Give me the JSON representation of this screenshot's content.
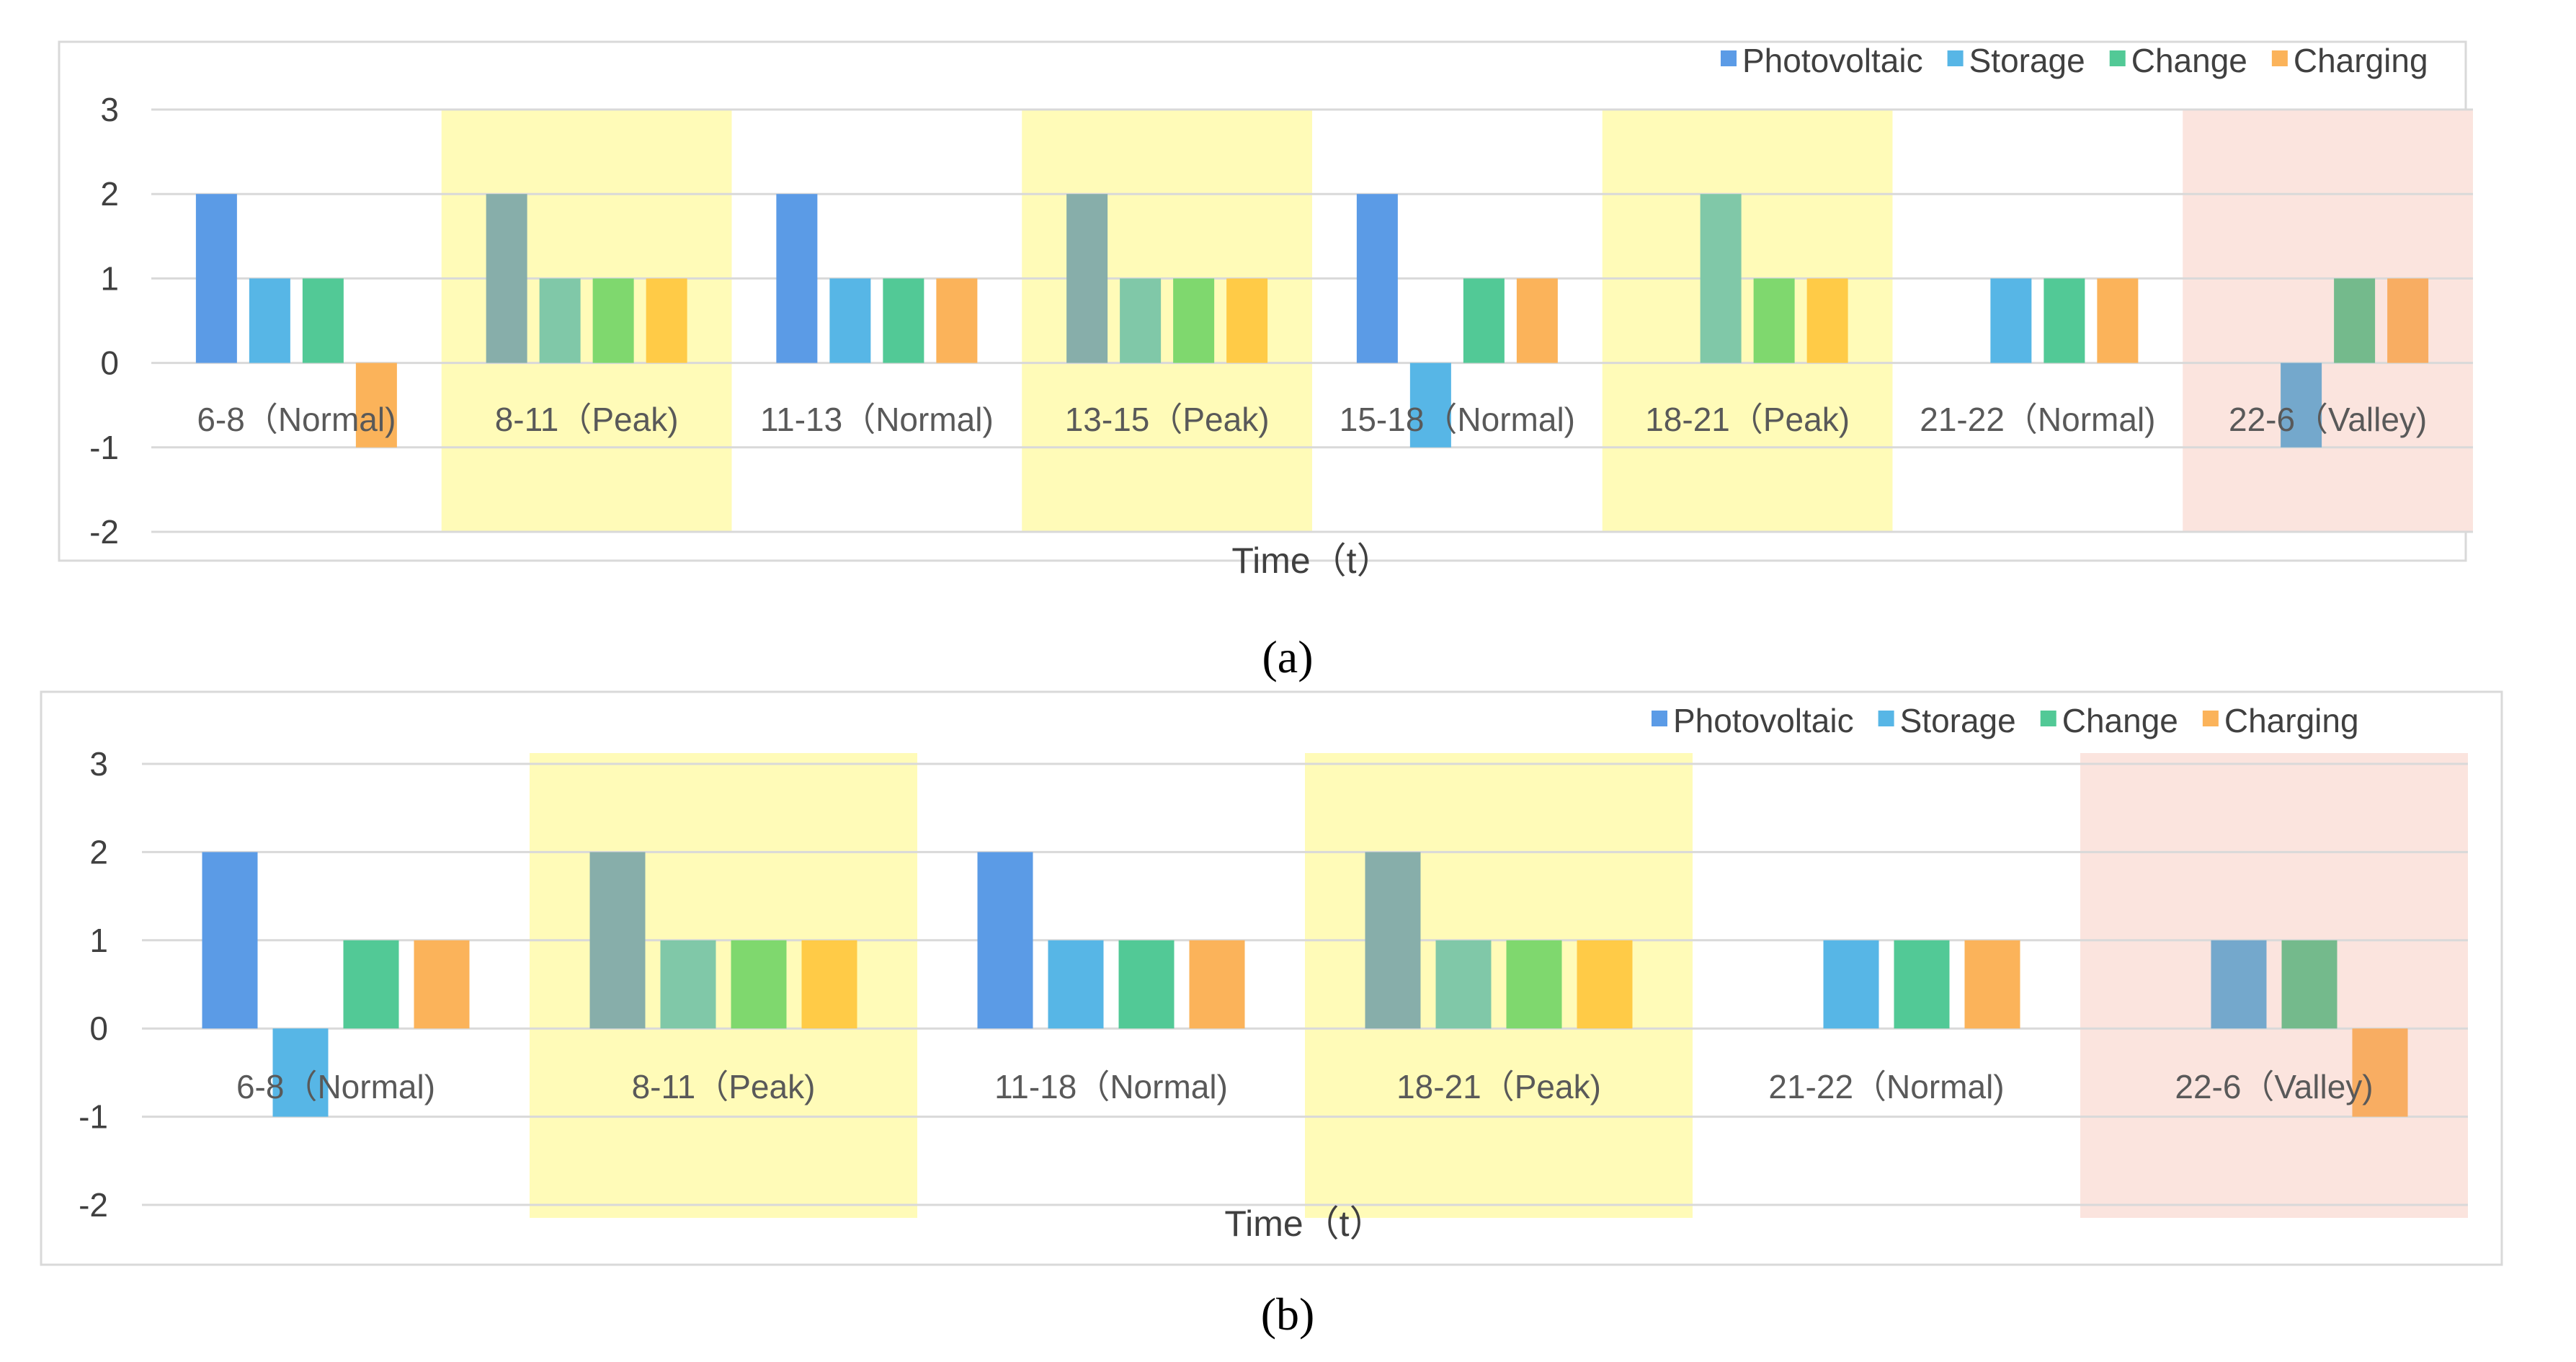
{
  "colors": {
    "Photovoltaic": "#5b9be6",
    "Storage": "#57b6e6",
    "Change": "#52c996",
    "Charging": "#fbb35a",
    "peak_band": "#fffbb8",
    "valley_band": "#fbe4de"
  },
  "chart_data": [
    {
      "type": "bar",
      "panel": "(a)",
      "xlabel": "Time（t）",
      "ylabel": "",
      "ylim": [
        -2,
        3
      ],
      "yticks": [
        3,
        2,
        1,
        0,
        -1,
        -2
      ],
      "legend_position": "top-right",
      "categories": [
        "6-8（Normal)",
        "8-11（Peak)",
        "11-13（Normal)",
        "13-15（Peak)",
        "15-18（Normal)",
        "18-21（Peak)",
        "21-22（Normal)",
        "22-6（Valley)"
      ],
      "periods": [
        "Normal",
        "Peak",
        "Normal",
        "Peak",
        "Normal",
        "Peak",
        "Normal",
        "Valley"
      ],
      "series": [
        {
          "name": "Photovoltaic",
          "values": [
            2,
            2,
            2,
            2,
            2,
            0,
            0,
            0
          ]
        },
        {
          "name": "Storage",
          "values": [
            1,
            1,
            1,
            1,
            -1,
            2,
            1,
            -1
          ]
        },
        {
          "name": "Change",
          "values": [
            1,
            1,
            1,
            1,
            1,
            1,
            1,
            1
          ]
        },
        {
          "name": "Charging",
          "values": [
            -1,
            1,
            1,
            1,
            1,
            1,
            1,
            1
          ]
        }
      ]
    },
    {
      "type": "bar",
      "panel": "(b)",
      "xlabel": "Time（t）",
      "ylabel": "",
      "ylim": [
        -2,
        3
      ],
      "yticks": [
        3,
        2,
        1,
        0,
        -1,
        -2
      ],
      "legend_position": "top-right",
      "categories": [
        "6-8（Normal)",
        "8-11（Peak)",
        "11-18（Normal)",
        "18-21（Peak)",
        "21-22（Normal)",
        "22-6（Valley)"
      ],
      "periods": [
        "Normal",
        "Peak",
        "Normal",
        "Peak",
        "Normal",
        "Valley"
      ],
      "series": [
        {
          "name": "Photovoltaic",
          "values": [
            2,
            2,
            2,
            2,
            0,
            0
          ]
        },
        {
          "name": "Storage",
          "values": [
            -1,
            1,
            1,
            1,
            1,
            1
          ]
        },
        {
          "name": "Change",
          "values": [
            1,
            1,
            1,
            1,
            1,
            1
          ]
        },
        {
          "name": "Charging",
          "values": [
            1,
            1,
            1,
            1,
            1,
            -1
          ]
        }
      ]
    }
  ]
}
